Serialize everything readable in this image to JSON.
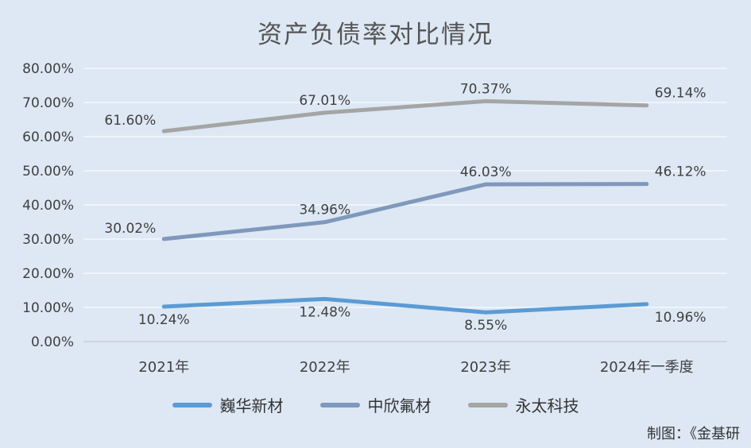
{
  "chart_data": {
    "type": "line",
    "title": "资产负债率对比情况",
    "categories": [
      "2021年",
      "2022年",
      "2023年",
      "2024年一季度"
    ],
    "y_tick_labels": [
      "0.00%",
      "10.00%",
      "20.00%",
      "30.00%",
      "40.00%",
      "50.00%",
      "60.00%",
      "70.00%",
      "80.00%"
    ],
    "ylim": [
      0,
      80
    ],
    "grid": true,
    "legend_position": "bottom",
    "series": [
      {
        "name": "巍华新材",
        "values": [
          10.24,
          12.48,
          8.55,
          10.96
        ],
        "labels": [
          "10.24%",
          "12.48%",
          "8.55%",
          "10.96%"
        ],
        "color": "#5b9bd5"
      },
      {
        "name": "中欣氟材",
        "values": [
          30.02,
          34.96,
          46.03,
          46.12
        ],
        "labels": [
          "30.02%",
          "34.96%",
          "46.03%",
          "46.12%"
        ],
        "color": "#7f98bb"
      },
      {
        "name": "永太科技",
        "values": [
          61.6,
          67.01,
          70.37,
          69.14
        ],
        "labels": [
          "61.60%",
          "67.01%",
          "70.37%",
          "69.14%"
        ],
        "color": "#a5a5a5"
      }
    ]
  },
  "footer": {
    "credit": "制图：《金基研"
  }
}
